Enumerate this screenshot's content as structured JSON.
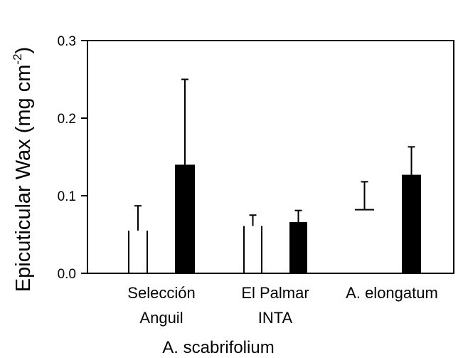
{
  "chart_data": {
    "type": "bar",
    "ylabel": "Epicuticular Wax (mg cm",
    "ylabel_sup": "-2",
    "ylabel_close": ")",
    "ylim": [
      0,
      0.3
    ],
    "yticks": [
      "0.0",
      "0.1",
      "0.2",
      "0.3"
    ],
    "ytick_values": [
      0,
      0.1,
      0.2,
      0.3
    ],
    "categories": [
      {
        "line1": "Selección",
        "line2": "Anguil"
      },
      {
        "line1": "El Palmar",
        "line2": "INTA"
      },
      {
        "line1": "A. elongatum",
        "line2": ""
      }
    ],
    "group_label": "A. scabrifolium",
    "series": [
      {
        "fill": "#ffffff",
        "values": [
          0.055,
          0.061,
          0.082
        ],
        "errors": [
          0.032,
          0.014,
          0.036
        ]
      },
      {
        "fill": "#000000",
        "values": [
          0.14,
          0.066,
          0.127
        ],
        "errors": [
          0.11,
          0.015,
          0.036
        ]
      }
    ],
    "grid": false,
    "frame": "box"
  }
}
